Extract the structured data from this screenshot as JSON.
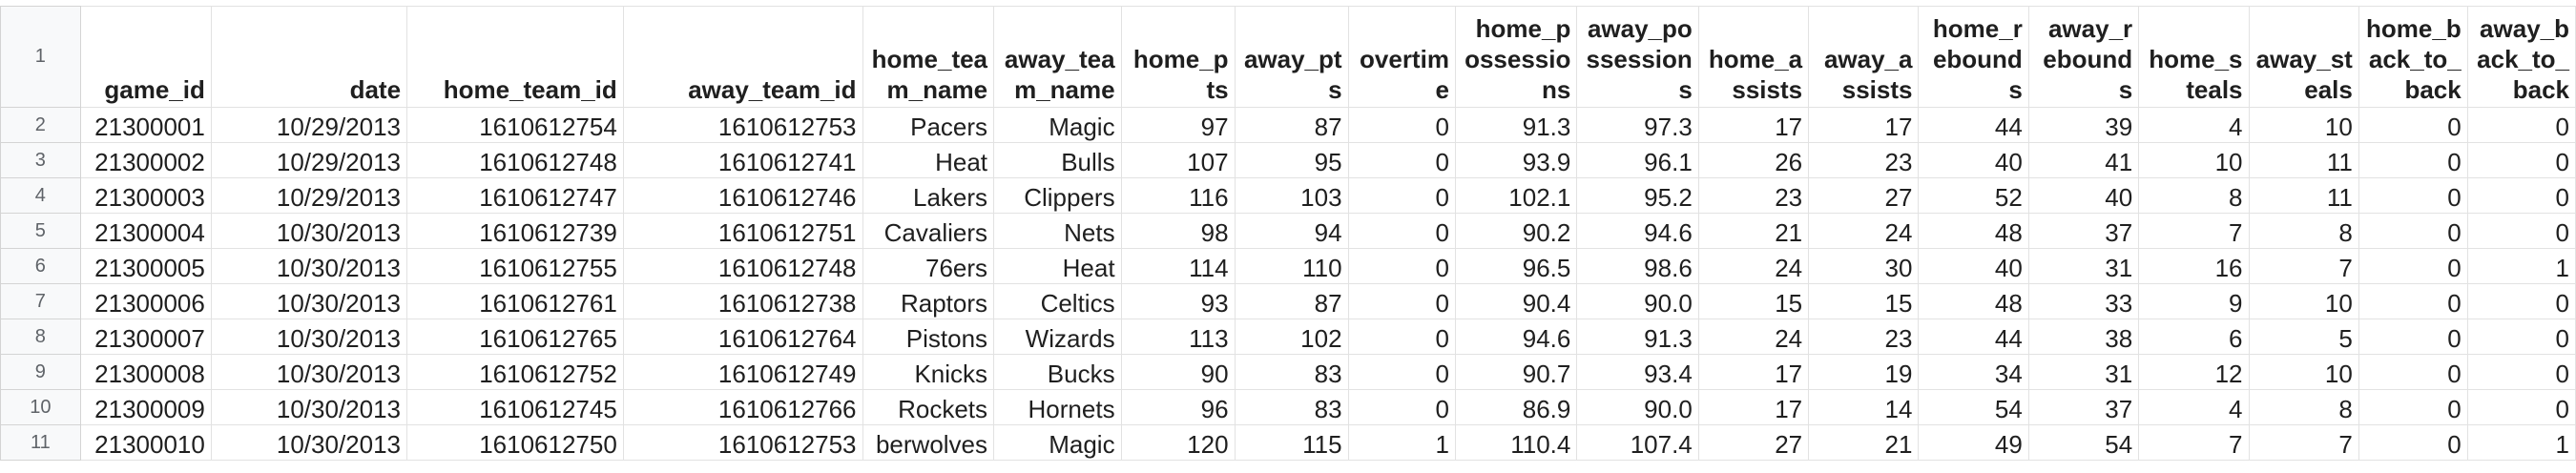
{
  "sheet": {
    "header_row_number": "1",
    "columns": [
      {
        "key": "game_id",
        "label": "game_id"
      },
      {
        "key": "date",
        "label": "date"
      },
      {
        "key": "home_team_id",
        "label": "home_team_id"
      },
      {
        "key": "away_team_id",
        "label": "away_team_id"
      },
      {
        "key": "home_team_name",
        "label": "home_team_name"
      },
      {
        "key": "away_team_name",
        "label": "away_team_name"
      },
      {
        "key": "home_pts",
        "label": "home_pts"
      },
      {
        "key": "away_pts",
        "label": "away_pts"
      },
      {
        "key": "overtime",
        "label": "overtime"
      },
      {
        "key": "home_possessions",
        "label": "home_possessions"
      },
      {
        "key": "away_possessions",
        "label": "away_possessions"
      },
      {
        "key": "home_assists",
        "label": "home_assists"
      },
      {
        "key": "away_assists",
        "label": "away_assists"
      },
      {
        "key": "home_rebounds",
        "label": "home_rebounds"
      },
      {
        "key": "away_rebounds",
        "label": "away_rebounds"
      },
      {
        "key": "home_steals",
        "label": "home_steals"
      },
      {
        "key": "away_steals",
        "label": "away_steals"
      },
      {
        "key": "home_back_to_back",
        "label": "home_back_to_back"
      },
      {
        "key": "away_back_to_back",
        "label": "away_back_to_back"
      }
    ],
    "rows": [
      {
        "row_number": "2",
        "cells": [
          "21300001",
          "10/29/2013",
          "1610612754",
          "1610612753",
          "Pacers",
          "Magic",
          "97",
          "87",
          "0",
          "91.3",
          "97.3",
          "17",
          "17",
          "44",
          "39",
          "4",
          "10",
          "0",
          "0"
        ]
      },
      {
        "row_number": "3",
        "cells": [
          "21300002",
          "10/29/2013",
          "1610612748",
          "1610612741",
          "Heat",
          "Bulls",
          "107",
          "95",
          "0",
          "93.9",
          "96.1",
          "26",
          "23",
          "40",
          "41",
          "10",
          "11",
          "0",
          "0"
        ]
      },
      {
        "row_number": "4",
        "cells": [
          "21300003",
          "10/29/2013",
          "1610612747",
          "1610612746",
          "Lakers",
          "Clippers",
          "116",
          "103",
          "0",
          "102.1",
          "95.2",
          "23",
          "27",
          "52",
          "40",
          "8",
          "11",
          "0",
          "0"
        ]
      },
      {
        "row_number": "5",
        "cells": [
          "21300004",
          "10/30/2013",
          "1610612739",
          "1610612751",
          "Cavaliers",
          "Nets",
          "98",
          "94",
          "0",
          "90.2",
          "94.6",
          "21",
          "24",
          "48",
          "37",
          "7",
          "8",
          "0",
          "0"
        ]
      },
      {
        "row_number": "6",
        "cells": [
          "21300005",
          "10/30/2013",
          "1610612755",
          "1610612748",
          "76ers",
          "Heat",
          "114",
          "110",
          "0",
          "96.5",
          "98.6",
          "24",
          "30",
          "40",
          "31",
          "16",
          "7",
          "0",
          "1"
        ]
      },
      {
        "row_number": "7",
        "cells": [
          "21300006",
          "10/30/2013",
          "1610612761",
          "1610612738",
          "Raptors",
          "Celtics",
          "93",
          "87",
          "0",
          "90.4",
          "90.0",
          "15",
          "15",
          "48",
          "33",
          "9",
          "10",
          "0",
          "0"
        ]
      },
      {
        "row_number": "8",
        "cells": [
          "21300007",
          "10/30/2013",
          "1610612765",
          "1610612764",
          "Pistons",
          "Wizards",
          "113",
          "102",
          "0",
          "94.6",
          "91.3",
          "24",
          "23",
          "44",
          "38",
          "6",
          "5",
          "0",
          "0"
        ]
      },
      {
        "row_number": "9",
        "cells": [
          "21300008",
          "10/30/2013",
          "1610612752",
          "1610612749",
          "Knicks",
          "Bucks",
          "90",
          "83",
          "0",
          "90.7",
          "93.4",
          "17",
          "19",
          "34",
          "31",
          "12",
          "10",
          "0",
          "0"
        ]
      },
      {
        "row_number": "10",
        "cells": [
          "21300009",
          "10/30/2013",
          "1610612745",
          "1610612766",
          "Rockets",
          "Hornets",
          "96",
          "83",
          "0",
          "86.9",
          "90.0",
          "17",
          "14",
          "54",
          "37",
          "4",
          "8",
          "0",
          "0"
        ]
      },
      {
        "row_number": "11",
        "cells": [
          "21300010",
          "10/30/2013",
          "1610612750",
          "1610612753",
          "berwolves",
          "Magic",
          "120",
          "115",
          "1",
          "110.4",
          "107.4",
          "27",
          "21",
          "49",
          "54",
          "7",
          "7",
          "0",
          "1"
        ]
      }
    ]
  },
  "colors": {
    "grid_line": "#e2e2e2",
    "row_header_bg": "#f8f9fa",
    "row_header_text": "#5f6368",
    "cell_text": "#1f1f1f"
  }
}
